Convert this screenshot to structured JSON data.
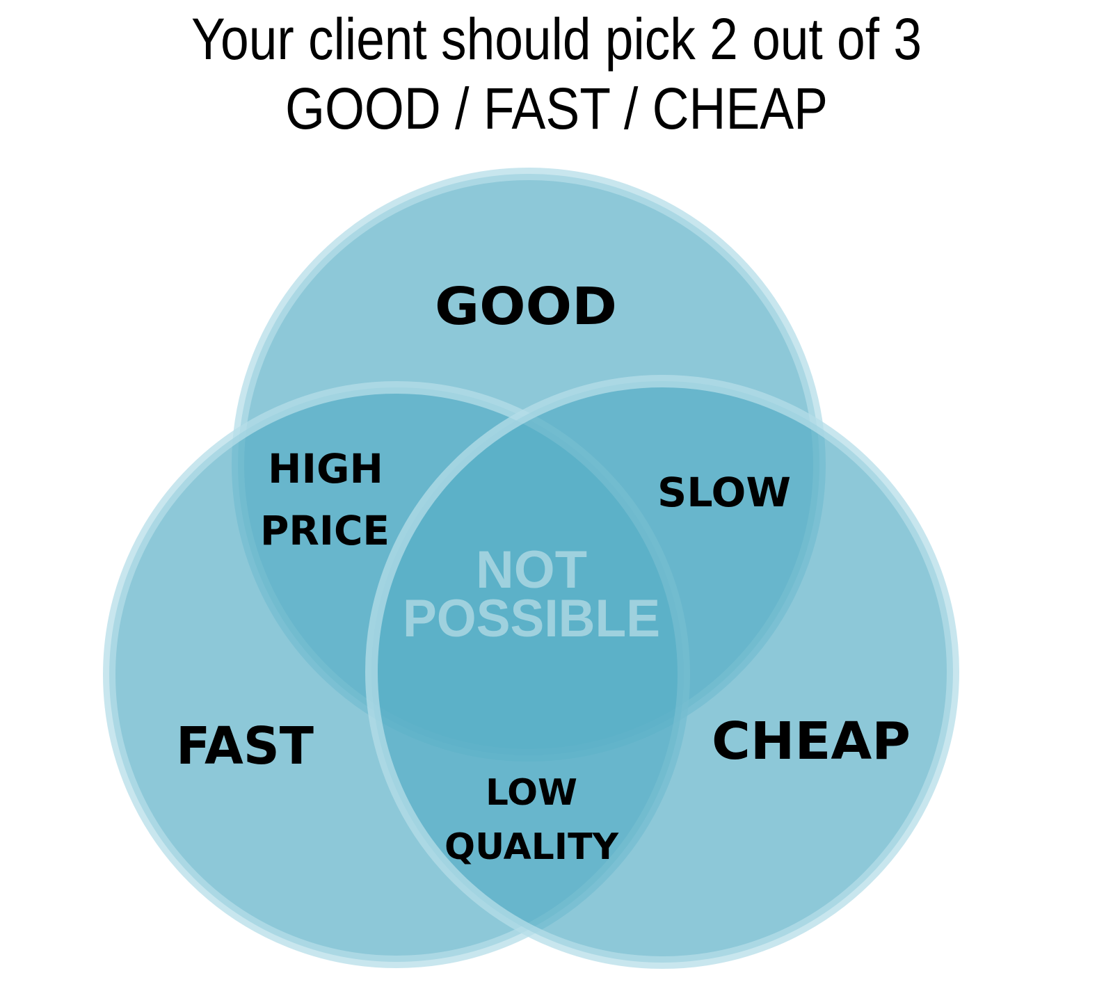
{
  "title": {
    "line1": "Your client should pick 2 out of 3",
    "line2": "GOOD / FAST / CHEAP"
  },
  "sets": {
    "good": "GOOD",
    "fast": "FAST",
    "cheap": "CHEAP"
  },
  "intersections": {
    "good_fast": {
      "line1": "HIGH",
      "line2": "PRICE"
    },
    "good_cheap": {
      "line1": "SLOW"
    },
    "fast_cheap": {
      "line1": "LOW",
      "line2": "QUALITY"
    },
    "all_three": {
      "line1": "NOT",
      "line2": "POSSIBLE"
    }
  },
  "colors": {
    "circle_fill": "#57aec5",
    "circle_stroke": "#b5dde8",
    "center_text": "#9fd1de",
    "label_text": "#000000",
    "background": "#ffffff"
  }
}
